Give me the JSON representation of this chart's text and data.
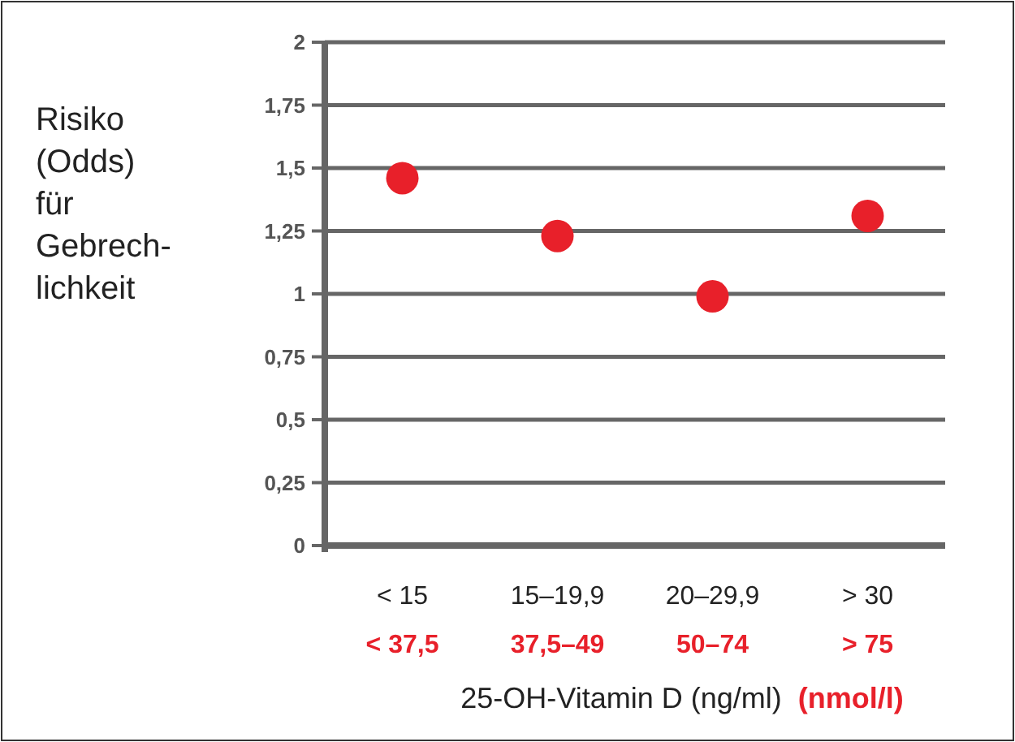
{
  "chart_data": {
    "type": "scatter",
    "ylabel": "Risiko\n(Odds)\nfür\nGebrech-\nlichkeit",
    "xlabel": "25-OH-Vitamin D   (ng/ml)   (nmol/l)",
    "categories": [
      "< 15\n< 37,5",
      "15–19,9\n37,5–49",
      "20–29,9\n50–74",
      "> 30\n> 75"
    ],
    "series": [
      {
        "color": "#e8202a",
        "values": [
          1.46,
          1.23,
          0.99,
          1.31
        ]
      }
    ],
    "ylim": [
      0,
      2
    ],
    "yticks": [
      {
        "value": 0,
        "label": "0"
      },
      {
        "value": 0.25,
        "label": "0,25"
      },
      {
        "value": 0.5,
        "label": "0,5"
      },
      {
        "value": 0.75,
        "label": "0,75"
      },
      {
        "value": 1,
        "label": "1"
      },
      {
        "value": 1.25,
        "label": "1,25"
      },
      {
        "value": 1.5,
        "label": "1,5"
      },
      {
        "value": 1.75,
        "label": "1,75"
      },
      {
        "value": 2,
        "label": "2"
      }
    ],
    "grid": "y",
    "marker": "circle"
  }
}
